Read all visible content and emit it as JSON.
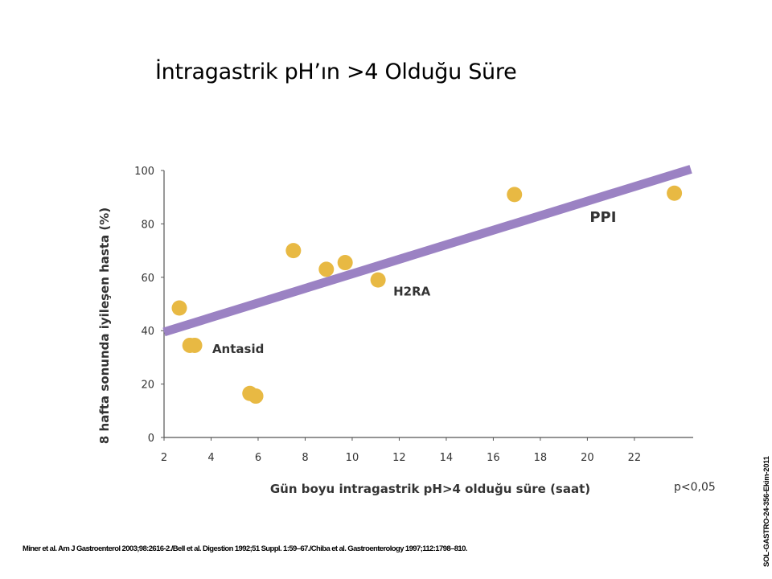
{
  "slide": {
    "title": "İntragastrik pH’ın >4 Olduğu Süre",
    "p_note": "p<0,05",
    "references": "Miner et al. Am J Gastroenterol 2003;98:2616-2./Bell et al. Digestion 1992;51 Suppl. 1:59–67./Chiba et al. Gastroenterology 1997;112:1798–810.",
    "side_code": "SOL-GASTRO-24-356-Ekim-2011"
  },
  "chart_data": {
    "type": "scatter",
    "title": "",
    "xlabel": "Gün boyu intragastrik pH>4 olduğu süre (saat)",
    "ylabel": "8 hafta sonunda iyileşen hasta (%)",
    "xlim": [
      2,
      24.5
    ],
    "ylim": [
      0,
      100
    ],
    "x_ticks": [
      2,
      4,
      6,
      8,
      10,
      12,
      14,
      16,
      18,
      20,
      22
    ],
    "y_ticks": [
      0,
      20,
      40,
      60,
      80,
      100
    ],
    "grid": false,
    "colors": {
      "points": "#e8b943",
      "trend_line": "#9b82c3",
      "axis": "#555555"
    },
    "points": [
      {
        "x": 2.65,
        "y": 48.5
      },
      {
        "x": 3.1,
        "y": 34.5
      },
      {
        "x": 3.3,
        "y": 34.5
      },
      {
        "x": 5.65,
        "y": 16.5
      },
      {
        "x": 5.9,
        "y": 15.5
      },
      {
        "x": 7.5,
        "y": 70
      },
      {
        "x": 8.9,
        "y": 63
      },
      {
        "x": 9.7,
        "y": 65.5
      },
      {
        "x": 11.1,
        "y": 59
      },
      {
        "x": 16.9,
        "y": 91
      },
      {
        "x": 23.7,
        "y": 91.5
      }
    ],
    "trend_line": {
      "x1": 2,
      "y1": 39.5,
      "x2": 24.4,
      "y2": 100.5
    },
    "annotations": [
      {
        "text": "Antasid",
        "x": 4.05,
        "y": 33.5,
        "size": "normal"
      },
      {
        "text": "H2RA",
        "x": 11.75,
        "y": 55,
        "size": "normal"
      },
      {
        "text": "PPI",
        "x": 20.1,
        "y": 82.5,
        "size": "large"
      }
    ]
  }
}
